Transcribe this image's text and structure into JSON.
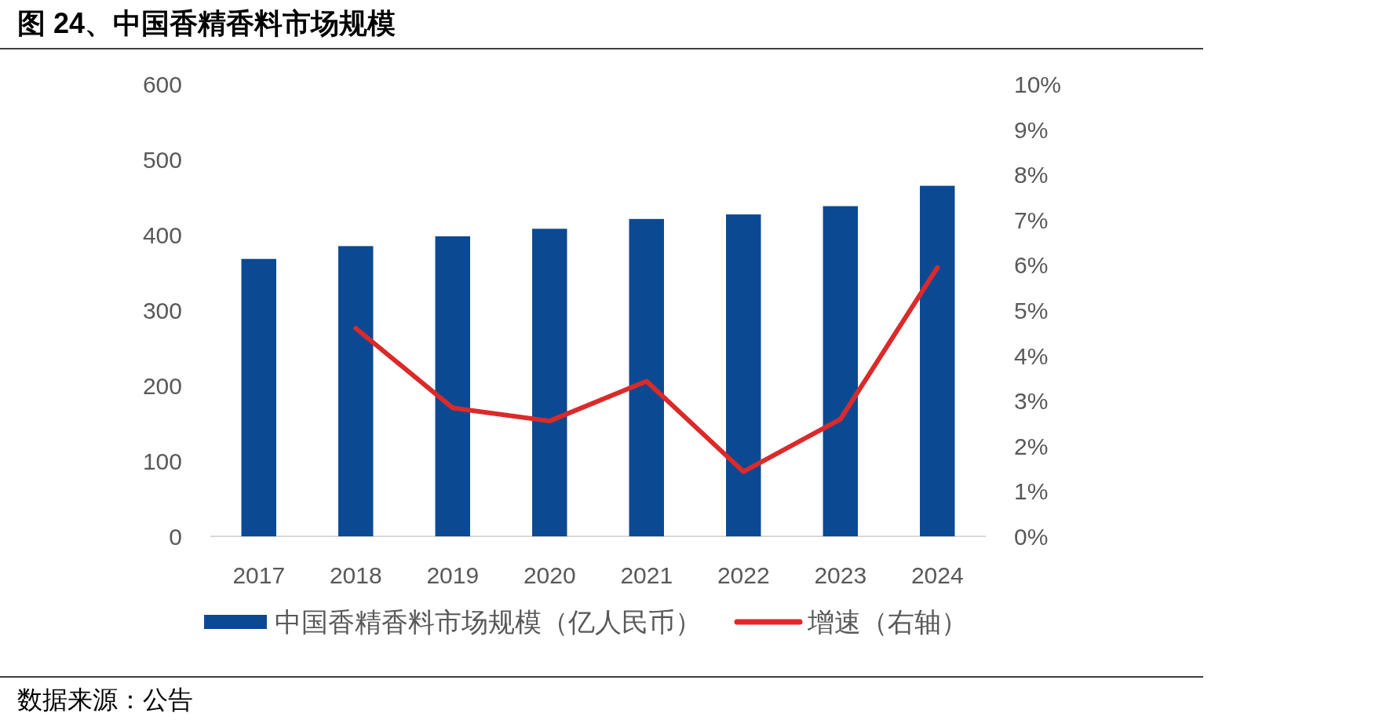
{
  "chart_data": {
    "type": "bar",
    "title": "图 24、中国香精香料市场规模",
    "categories": [
      "2017",
      "2018",
      "2019",
      "2020",
      "2021",
      "2022",
      "2023",
      "2024"
    ],
    "series": [
      {
        "name": "中国香精香料市场规模（亿人民币）",
        "color": "#0b4a93",
        "values": [
          368,
          385,
          398,
          408,
          421,
          427,
          438,
          465
        ]
      },
      {
        "name": "增速（右轴）",
        "type": "line",
        "axis": "y2",
        "color": "#db2a2a",
        "values": [
          null,
          4.6,
          2.84,
          2.55,
          3.43,
          1.43,
          2.59,
          5.94
        ]
      }
    ],
    "ylim": [
      0,
      600
    ],
    "yticks": [
      0,
      100,
      200,
      300,
      400,
      500,
      600
    ],
    "y2lim": [
      0,
      10
    ],
    "y2ticks": [
      {
        "value": 0,
        "label": "0%"
      },
      {
        "value": 1,
        "label": "1%"
      },
      {
        "value": 2,
        "label": "2%"
      },
      {
        "value": 3,
        "label": "3%"
      },
      {
        "value": 4,
        "label": "4%"
      },
      {
        "value": 5,
        "label": "5%"
      },
      {
        "value": 6,
        "label": "6%"
      },
      {
        "value": 7,
        "label": "7%"
      },
      {
        "value": 8,
        "label": "8%"
      },
      {
        "value": 9,
        "label": "9%"
      },
      {
        "value": 10,
        "label": "10%"
      }
    ],
    "legend": "bottom",
    "grid": false,
    "annotations": [
      "数据来源：公告"
    ]
  }
}
